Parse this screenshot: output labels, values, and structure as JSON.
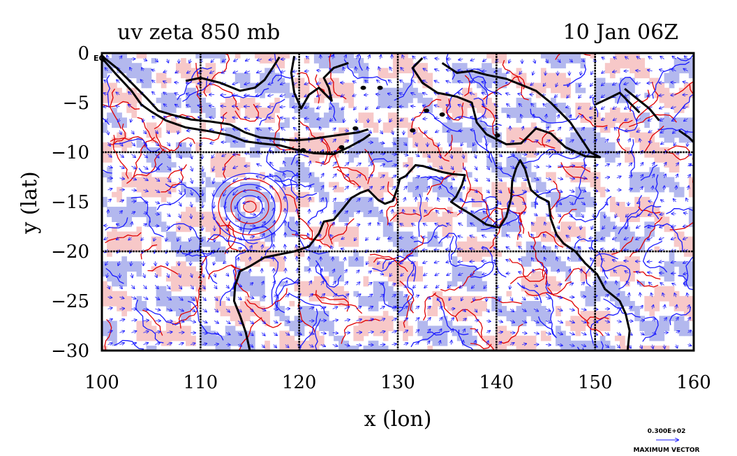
{
  "figure": {
    "title_left": "uv zeta 850 mb",
    "title_right": "10 Jan 06Z",
    "xlabel": "x (lon)",
    "ylabel": "y (lat)",
    "x_ticks": [
      "100",
      "110",
      "120",
      "130",
      "140",
      "150",
      "160"
    ],
    "y_ticks": [
      "0",
      "−5",
      "−10",
      "−15",
      "−20",
      "−25",
      "−30"
    ],
    "eq_label": "EQ",
    "max_vector_value": "0.300E+02",
    "max_vector_label": "MAXIMUM VECTOR"
  },
  "chart_data": {
    "type": "map",
    "variable": "uv zeta",
    "level": "850 mb",
    "time": "10 Jan 06Z",
    "xlim": [
      100,
      160
    ],
    "ylim": [
      -30,
      0
    ],
    "x_gridlines": [
      110,
      120,
      130,
      140,
      150
    ],
    "y_gridlines": [
      -10,
      -20
    ],
    "colors": {
      "positive_contour": "#e00000",
      "positive_fill": "#f7c8c8",
      "negative_contour": "#1a1aff",
      "negative_fill": "#b3b8ee",
      "coast": "#000000",
      "vectors": "#1a1aff"
    },
    "coastlines": [
      [
        [
          100,
          -0.3
        ],
        [
          101.5,
          -1.5
        ],
        [
          103,
          -3
        ],
        [
          104.5,
          -4.5
        ],
        [
          105.7,
          -5.8
        ],
        [
          107,
          -6.2
        ],
        [
          109,
          -6.7
        ],
        [
          111,
          -6.9
        ],
        [
          113,
          -7.2
        ],
        [
          114.5,
          -8
        ],
        [
          116,
          -8.5
        ],
        [
          118,
          -8.7
        ],
        [
          119.5,
          -8.8
        ],
        [
          121,
          -8.7
        ],
        [
          123,
          -8.4
        ],
        [
          124.5,
          -8.2
        ],
        [
          126,
          -8
        ],
        [
          127,
          -7.7
        ]
      ],
      [
        [
          100,
          -0.5
        ],
        [
          101.5,
          -2.2
        ],
        [
          103,
          -3.8
        ],
        [
          104,
          -5.2
        ],
        [
          105,
          -5.9
        ],
        [
          106.5,
          -6.8
        ],
        [
          108.5,
          -7.5
        ],
        [
          111,
          -7.9
        ],
        [
          113,
          -8.3
        ],
        [
          114.5,
          -8.9
        ],
        [
          116,
          -9.1
        ],
        [
          118,
          -9.3
        ],
        [
          119.5,
          -9.7
        ],
        [
          121.5,
          -10.1
        ],
        [
          123.5,
          -10.2
        ],
        [
          125,
          -9.5
        ],
        [
          126.5,
          -8.7
        ],
        [
          127.2,
          -8.2
        ]
      ],
      [
        [
          108.5,
          -2.8
        ],
        [
          110,
          -2.5
        ],
        [
          112,
          -3
        ],
        [
          114,
          -3.8
        ],
        [
          115.5,
          -3.5
        ],
        [
          116.5,
          -2.7
        ],
        [
          117.3,
          -1.5
        ],
        [
          118,
          -0.4
        ]
      ],
      [
        [
          119.5,
          -0.3
        ],
        [
          119.2,
          -2
        ],
        [
          119.5,
          -4
        ],
        [
          120.2,
          -5.6
        ],
        [
          121,
          -4.2
        ],
        [
          122,
          -3.5
        ],
        [
          123.3,
          -4.8
        ],
        [
          123,
          -3.5
        ],
        [
          122.5,
          -2.5
        ],
        [
          123.5,
          -1.5
        ],
        [
          125,
          -1
        ]
      ],
      [
        [
          134.5,
          -1
        ],
        [
          136,
          -2
        ],
        [
          137.5,
          -1.8
        ],
        [
          139,
          -2.2
        ],
        [
          141,
          -2.6
        ],
        [
          142.5,
          -3.2
        ],
        [
          144,
          -3.8
        ],
        [
          145.5,
          -5
        ],
        [
          146.5,
          -6
        ],
        [
          147.5,
          -7
        ],
        [
          148.5,
          -8.5
        ],
        [
          149.5,
          -10
        ],
        [
          150.5,
          -10.5
        ],
        [
          149,
          -10.4
        ],
        [
          147,
          -9.5
        ],
        [
          145.5,
          -8.1
        ],
        [
          144,
          -7.6
        ],
        [
          142.5,
          -9.1
        ],
        [
          141,
          -9.2
        ],
        [
          139,
          -8.2
        ],
        [
          138,
          -7
        ],
        [
          137.5,
          -5
        ],
        [
          136,
          -4.4
        ],
        [
          134,
          -4
        ],
        [
          132.5,
          -3
        ],
        [
          131.5,
          -1.5
        ],
        [
          132.5,
          -0.5
        ]
      ],
      [
        [
          150,
          -5.2
        ],
        [
          151.5,
          -4.5
        ],
        [
          152.5,
          -4
        ],
        [
          153.5,
          -5
        ],
        [
          154.5,
          -6
        ]
      ],
      [
        [
          153,
          -3.6
        ],
        [
          154.5,
          -4.8
        ],
        [
          155.5,
          -5.6
        ],
        [
          156.5,
          -6.8
        ]
      ],
      [
        [
          158.5,
          -7.8
        ],
        [
          159.5,
          -8.5
        ],
        [
          160,
          -9
        ]
      ],
      [
        [
          114,
          -22
        ],
        [
          113.5,
          -23.5
        ],
        [
          113.4,
          -25
        ],
        [
          114,
          -26.5
        ],
        [
          114.6,
          -28.2
        ],
        [
          115,
          -30
        ]
      ],
      [
        [
          114,
          -22
        ],
        [
          115,
          -21.5
        ],
        [
          116.5,
          -20.6
        ],
        [
          118,
          -20.3
        ],
        [
          119.5,
          -20
        ],
        [
          121,
          -19.5
        ],
        [
          122,
          -18.2
        ],
        [
          122.5,
          -17
        ],
        [
          123.5,
          -16.8
        ],
        [
          124.5,
          -15.6
        ],
        [
          125.3,
          -14.6
        ],
        [
          126.2,
          -14.1
        ],
        [
          127,
          -13.8
        ],
        [
          128,
          -14.8
        ],
        [
          128.7,
          -15.2
        ],
        [
          129.5,
          -14.9
        ],
        [
          130,
          -13.5
        ],
        [
          130.2,
          -12.7
        ],
        [
          130.8,
          -12.4
        ],
        [
          131.8,
          -11.3
        ],
        [
          132.6,
          -11.4
        ],
        [
          133.5,
          -11.7
        ],
        [
          134.5,
          -12
        ],
        [
          135.5,
          -12.2
        ],
        [
          136.8,
          -12.3
        ],
        [
          136.5,
          -13.3
        ],
        [
          135.9,
          -14.5
        ],
        [
          135.4,
          -15
        ],
        [
          136.3,
          -15.6
        ],
        [
          137.5,
          -16.3
        ],
        [
          139,
          -17.3
        ],
        [
          140.3,
          -17.6
        ],
        [
          141,
          -16.5
        ],
        [
          141.5,
          -14.6
        ],
        [
          141.6,
          -12.9
        ],
        [
          142,
          -11.6
        ],
        [
          142.4,
          -10.8
        ],
        [
          142.9,
          -11.7
        ],
        [
          143.5,
          -13.8
        ],
        [
          144.3,
          -14.5
        ],
        [
          145.3,
          -15
        ],
        [
          145.5,
          -16.7
        ],
        [
          146.1,
          -18.3
        ],
        [
          146.8,
          -19.2
        ],
        [
          148,
          -20
        ],
        [
          149,
          -21.2
        ],
        [
          150.2,
          -22.3
        ],
        [
          151,
          -23.8
        ],
        [
          152.5,
          -25
        ],
        [
          153.1,
          -26.3
        ],
        [
          153.5,
          -28
        ],
        [
          153.3,
          -30
        ]
      ]
    ],
    "islands": [
      [
        132.9,
        -5.8
      ],
      [
        134.5,
        -6.2
      ],
      [
        131.5,
        -7.8
      ],
      [
        126.5,
        -3.5
      ],
      [
        128.2,
        -3.5
      ],
      [
        125.7,
        -7.6
      ],
      [
        124.3,
        -9.5
      ],
      [
        120.4,
        -9.8
      ],
      [
        140.1,
        -8.3
      ]
    ],
    "cyclone_center": {
      "lon": 115,
      "lat": -15.5
    },
    "max_vector": {
      "value": 30
    }
  }
}
